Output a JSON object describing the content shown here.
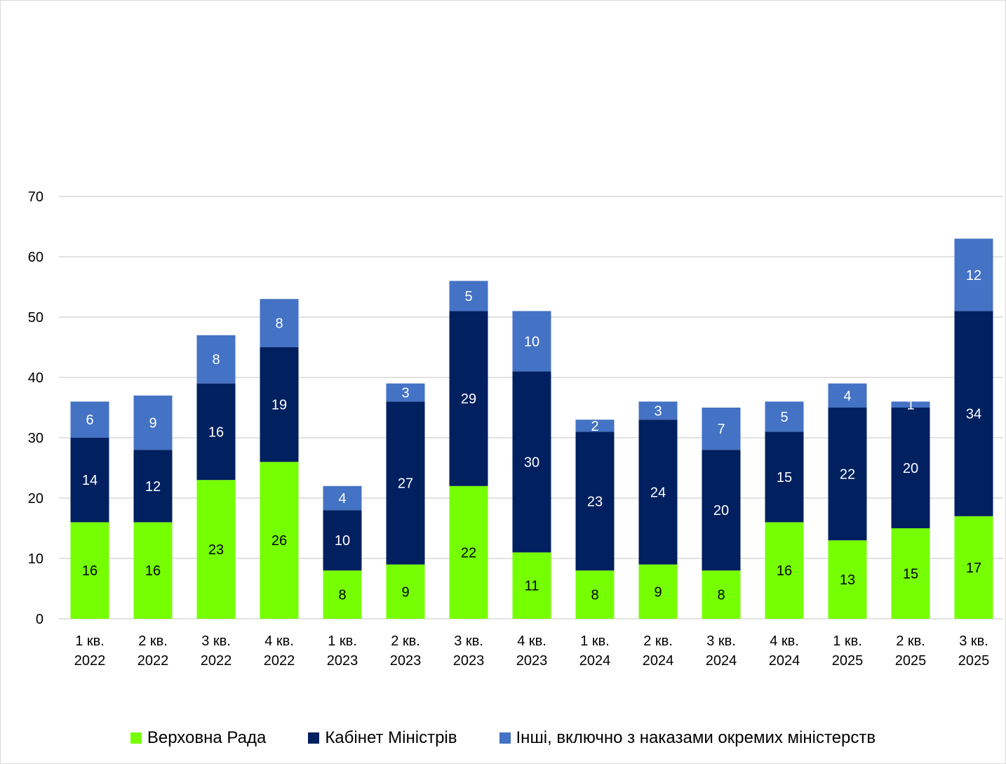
{
  "chart_data": {
    "type": "bar",
    "stacked": true,
    "title": "",
    "xlabel": "",
    "ylabel": "",
    "ylim": [
      0,
      70
    ],
    "yticks": [
      0,
      10,
      20,
      30,
      40,
      50,
      60,
      70
    ],
    "grid": true,
    "legend_position": "bottom",
    "categories": [
      [
        "1 кв.",
        "2022"
      ],
      [
        "2 кв.",
        "2022"
      ],
      [
        "3 кв.",
        "2022"
      ],
      [
        "4 кв.",
        "2022"
      ],
      [
        "1 кв.",
        "2023"
      ],
      [
        "2 кв.",
        "2023"
      ],
      [
        "3 кв.",
        "2023"
      ],
      [
        "4 кв.",
        "2023"
      ],
      [
        "1 кв.",
        "2024"
      ],
      [
        "2 кв.",
        "2024"
      ],
      [
        "3 кв.",
        "2024"
      ],
      [
        "4 кв.",
        "2024"
      ],
      [
        "1 кв.",
        "2025"
      ],
      [
        "2 кв.",
        "2025"
      ],
      [
        "3 кв.",
        "2025"
      ]
    ],
    "series": [
      {
        "name": "Верховна Рада",
        "color": "#76FF03",
        "label_color": "#000000",
        "values": [
          16,
          16,
          23,
          26,
          8,
          9,
          22,
          11,
          8,
          9,
          8,
          16,
          13,
          15,
          17
        ]
      },
      {
        "name": "Кабінет Міністрів",
        "color": "#002060",
        "label_color": "#FFFFFF",
        "values": [
          14,
          12,
          16,
          19,
          10,
          27,
          29,
          30,
          23,
          24,
          20,
          15,
          22,
          20,
          34
        ]
      },
      {
        "name": "Інші, включно з наказами окремих міністерств",
        "color": "#4472C4",
        "label_color": "#FFFFFF",
        "values": [
          6,
          9,
          8,
          8,
          4,
          3,
          5,
          10,
          2,
          3,
          7,
          5,
          4,
          1,
          12
        ]
      }
    ]
  }
}
